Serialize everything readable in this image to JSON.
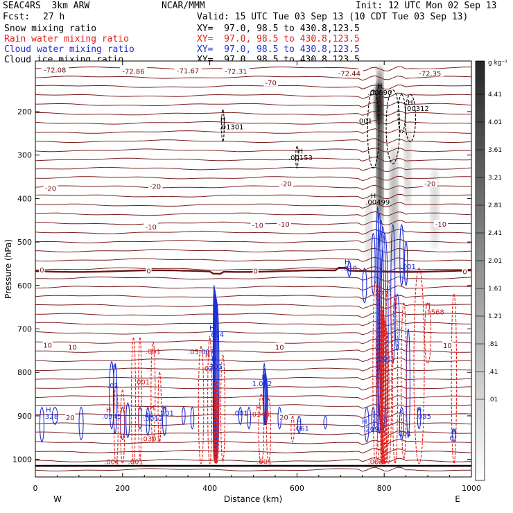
{
  "header": {
    "model": "SEAC4RS  3km ARW",
    "org": "NCAR/MMM",
    "init": "Init: 12 UTC Mon 02 Sep 13",
    "fcst_label": "Fcst:",
    "fcst_value": "27 h",
    "valid": "Valid: 15 UTC Tue 03 Sep 13 (10 CDT Tue 03 Sep 13)"
  },
  "legend": [
    {
      "name": "Snow mixing ratio",
      "xy": "XY=  97.0, 98.5 to 430.8,123.5",
      "color": "#000000"
    },
    {
      "name": "Rain water mixing ratio",
      "xy": "XY=  97.0, 98.5 to 430.8,123.5",
      "color": "#e0201c"
    },
    {
      "name": "Cloud water mixing ratio",
      "xy": "XY=  97.0, 98.5 to 430.8,123.5",
      "color": "#1f2fd0"
    },
    {
      "name": "Cloud ice mixing ratio",
      "xy": "XY=  97.0, 98.5 to 430.8,123.5",
      "color": "#000000"
    }
  ],
  "chart_data": {
    "type": "heatmap",
    "xlabel": "Distance (km)",
    "ylabel": "Pressure (hPa)",
    "xlim": [
      0,
      1000
    ],
    "ylim": [
      1050,
      100
    ],
    "x_ticks": [
      0,
      200,
      400,
      600,
      800,
      1000
    ],
    "y_ticks": [
      200,
      300,
      400,
      500,
      600,
      700,
      800,
      900,
      1000
    ],
    "x_end_labels": {
      "left": "W",
      "right": "E"
    },
    "colorbar": {
      "unit": "g kg⁻¹",
      "levels": [
        "4.41",
        "4.01",
        "3.61",
        "3.21",
        "2.81",
        "2.41",
        "2.01",
        "1.61",
        "1.21",
        ".81",
        ".41",
        ".01"
      ]
    },
    "temperature_labels": [
      {
        "x": 45,
        "p": 105,
        "text": "-72.08"
      },
      {
        "x": 225,
        "p": 108,
        "text": "-72.86"
      },
      {
        "x": 350,
        "p": 107,
        "text": "-71.67"
      },
      {
        "x": 460,
        "p": 108,
        "text": "-72.31"
      },
      {
        "x": 720,
        "p": 113,
        "text": "-72.44"
      },
      {
        "x": 905,
        "p": 113,
        "text": "-72.35"
      },
      {
        "x": 540,
        "p": 135,
        "text": "-70"
      },
      {
        "x": 35,
        "p": 378,
        "text": "-20"
      },
      {
        "x": 275,
        "p": 373,
        "text": "-20"
      },
      {
        "x": 575,
        "p": 367,
        "text": "-20"
      },
      {
        "x": 905,
        "p": 367,
        "text": "-20"
      },
      {
        "x": 265,
        "p": 466,
        "text": "-10"
      },
      {
        "x": 510,
        "p": 462,
        "text": "-10"
      },
      {
        "x": 570,
        "p": 460,
        "text": "-10"
      },
      {
        "x": 930,
        "p": 460,
        "text": "-10"
      },
      {
        "x": 15,
        "p": 565,
        "text": "0"
      },
      {
        "x": 260,
        "p": 568,
        "text": "0"
      },
      {
        "x": 505,
        "p": 568,
        "text": "0"
      },
      {
        "x": 985,
        "p": 569,
        "text": "0"
      },
      {
        "x": 28,
        "p": 738,
        "text": "10"
      },
      {
        "x": 85,
        "p": 743,
        "text": "10"
      },
      {
        "x": 560,
        "p": 743,
        "text": "10"
      },
      {
        "x": 945,
        "p": 739,
        "text": "10"
      },
      {
        "x": 80,
        "p": 905,
        "text": "20"
      },
      {
        "x": 570,
        "p": 904,
        "text": "20"
      }
    ],
    "annotations": [
      {
        "x": 790,
        "p": 140,
        "text": "H",
        "color": "#000000"
      },
      {
        "x": 790,
        "p": 155,
        "text": ".00690",
        "color": "#000000"
      },
      {
        "x": 860,
        "p": 178,
        "text": "H",
        "color": "#000000"
      },
      {
        "x": 875,
        "p": 192,
        "text": ".00312",
        "color": "#000000"
      },
      {
        "x": 430,
        "p": 217,
        "text": "H",
        "color": "#000000"
      },
      {
        "x": 450,
        "p": 234,
        "text": ".01301",
        "color": "#000000"
      },
      {
        "x": 755,
        "p": 221,
        "text": ".001",
        "color": "#000000"
      },
      {
        "x": 608,
        "p": 290,
        "text": "H",
        "color": "#000000"
      },
      {
        "x": 608,
        "p": 305,
        "text": ".00153",
        "color": "#000000"
      },
      {
        "x": 775,
        "p": 393,
        "text": "H",
        "color": "#000000"
      },
      {
        "x": 785,
        "p": 407,
        "text": ".00499",
        "color": "#000000"
      },
      {
        "x": 715,
        "p": 545,
        "text": "H",
        "color": "#1f2fd0"
      },
      {
        "x": 720,
        "p": 560,
        "text": ".018",
        "color": "#1f2fd0"
      },
      {
        "x": 855,
        "p": 556,
        "text": ".001",
        "color": "#1f2fd0"
      },
      {
        "x": 795,
        "p": 618,
        "text": "277",
        "color": "#e0201c"
      },
      {
        "x": 900,
        "p": 645,
        "text": "H",
        "color": "#e0201c"
      },
      {
        "x": 915,
        "p": 660,
        "text": ".1568",
        "color": "#e0201c"
      },
      {
        "x": 405,
        "p": 697,
        "text": "H",
        "color": "#1f2fd0"
      },
      {
        "x": 415,
        "p": 712,
        "text": ".604",
        "color": "#1f2fd0"
      },
      {
        "x": 410,
        "p": 768,
        "text": "H",
        "color": "#1f2fd0"
      },
      {
        "x": 412,
        "p": 785,
        "text": ".301",
        "color": "#1f2fd0"
      },
      {
        "x": 395,
        "p": 790,
        "text": ".62",
        "color": "#e0201c"
      },
      {
        "x": 395,
        "p": 760,
        "text": "H",
        "color": "#e0201c"
      },
      {
        "x": 380,
        "p": 752,
        "text": ".05.007",
        "color": "#1f2fd0"
      },
      {
        "x": 270,
        "p": 751,
        "text": ".001",
        "color": "#e0201c"
      },
      {
        "x": 245,
        "p": 821,
        "text": ".001",
        "color": "#e0201c"
      },
      {
        "x": 180,
        "p": 785,
        "text": "H",
        "color": "#1f2fd0"
      },
      {
        "x": 178,
        "p": 830,
        "text": ".01",
        "color": "#1f2fd0"
      },
      {
        "x": 168,
        "p": 885,
        "text": "H",
        "color": "#e0201c"
      },
      {
        "x": 175,
        "p": 900,
        "text": ".0345",
        "color": "#1f2fd0"
      },
      {
        "x": 30,
        "p": 885,
        "text": "H",
        "color": "#1f2fd0"
      },
      {
        "x": 35,
        "p": 900,
        "text": ".328",
        "color": "#1f2fd0"
      },
      {
        "x": 268,
        "p": 880,
        "text": "H",
        "color": "#e0201c"
      },
      {
        "x": 270,
        "p": 905,
        "text": ".0012",
        "color": "#1f2fd0"
      },
      {
        "x": 258,
        "p": 898,
        "text": ".44",
        "color": "#1f2fd0"
      },
      {
        "x": 300,
        "p": 893,
        "text": ".001",
        "color": "#1f2fd0"
      },
      {
        "x": 296,
        "p": 880,
        "text": "H",
        "color": "#1f2fd0"
      },
      {
        "x": 265,
        "p": 952,
        "text": ".0301",
        "color": "#e0201c"
      },
      {
        "x": 525,
        "p": 810,
        "text": "H",
        "color": "#1f2fd0"
      },
      {
        "x": 520,
        "p": 825,
        "text": "1.062",
        "color": "#1f2fd0"
      },
      {
        "x": 512,
        "p": 880,
        "text": "H",
        "color": "#e0201c"
      },
      {
        "x": 515,
        "p": 895,
        "text": ".0345",
        "color": "#e0201c"
      },
      {
        "x": 470,
        "p": 893,
        "text": ".001",
        "color": "#1f2fd0"
      },
      {
        "x": 605,
        "p": 912,
        "text": "H",
        "color": "#1f2fd0"
      },
      {
        "x": 610,
        "p": 928,
        "text": ".061",
        "color": "#1f2fd0"
      },
      {
        "x": 755,
        "p": 912,
        "text": "H",
        "color": "#1f2fd0"
      },
      {
        "x": 770,
        "p": 930,
        "text": ".209",
        "color": "#1f2fd0"
      },
      {
        "x": 790,
        "p": 760,
        "text": "H",
        "color": "#e0201c"
      },
      {
        "x": 800,
        "p": 768,
        "text": ".001",
        "color": "#1f2fd0"
      },
      {
        "x": 845,
        "p": 940,
        "text": ".001",
        "color": "#1f2fd0"
      },
      {
        "x": 880,
        "p": 885,
        "text": "H",
        "color": "#1f2fd0"
      },
      {
        "x": 890,
        "p": 900,
        "text": ".085",
        "color": "#1f2fd0"
      },
      {
        "x": 960,
        "p": 935,
        "text": "H",
        "color": "#1f2fd0"
      },
      {
        "x": 955,
        "p": 950,
        "text": "0",
        "color": "#1f2fd0"
      },
      {
        "x": 175,
        "p": 1005,
        "text": ".001",
        "color": "#e0201c"
      },
      {
        "x": 230,
        "p": 1005,
        "text": ".001",
        "color": "#e0201c"
      },
      {
        "x": 525,
        "p": 1005,
        "text": ".001",
        "color": "#e0201c"
      },
      {
        "x": 780,
        "p": 1005,
        "text": ".001",
        "color": "#e0201c"
      }
    ]
  }
}
